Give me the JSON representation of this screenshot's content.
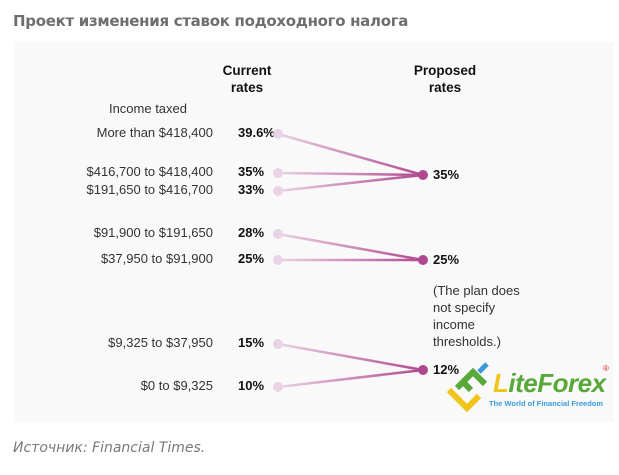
{
  "title": "Проект изменения ставок подоходного налога",
  "source": "Источник: Financial Times.",
  "chart_data": {
    "type": "slope",
    "column_headers": {
      "current": "Current rates",
      "proposed": "Proposed rates"
    },
    "row_header": "Income taxed",
    "rows": [
      {
        "bracket": "More than $418,400",
        "current": 39.6,
        "current_label": "39.6%",
        "proposed": 35
      },
      {
        "bracket": "$416,700 to $418,400",
        "current": 35,
        "current_label": "35%",
        "proposed": 35
      },
      {
        "bracket": "$191,650 to $416,700",
        "current": 33,
        "current_label": "33%",
        "proposed": 35
      },
      {
        "bracket": "$91,900 to $191,650",
        "current": 28,
        "current_label": "28%",
        "proposed": 25
      },
      {
        "bracket": "$37,950 to $91,900",
        "current": 25,
        "current_label": "25%",
        "proposed": 25
      },
      {
        "bracket": "$9,325 to $37,950",
        "current": 15,
        "current_label": "15%",
        "proposed": 12
      },
      {
        "bracket": "$0 to $9,325",
        "current": 10,
        "current_label": "10%",
        "proposed": 12
      }
    ],
    "proposed_rates": [
      {
        "value": 35,
        "label": "35%"
      },
      {
        "value": 25,
        "label": "25%"
      },
      {
        "value": 12,
        "label": "12%"
      }
    ],
    "note": "(The plan does not specify income thresholds.)",
    "colors": {
      "start": "#ead3e6",
      "end": "#b0488f"
    }
  },
  "logo": {
    "name": "LiteForex",
    "tagline": "The World of Financial Freedom"
  }
}
